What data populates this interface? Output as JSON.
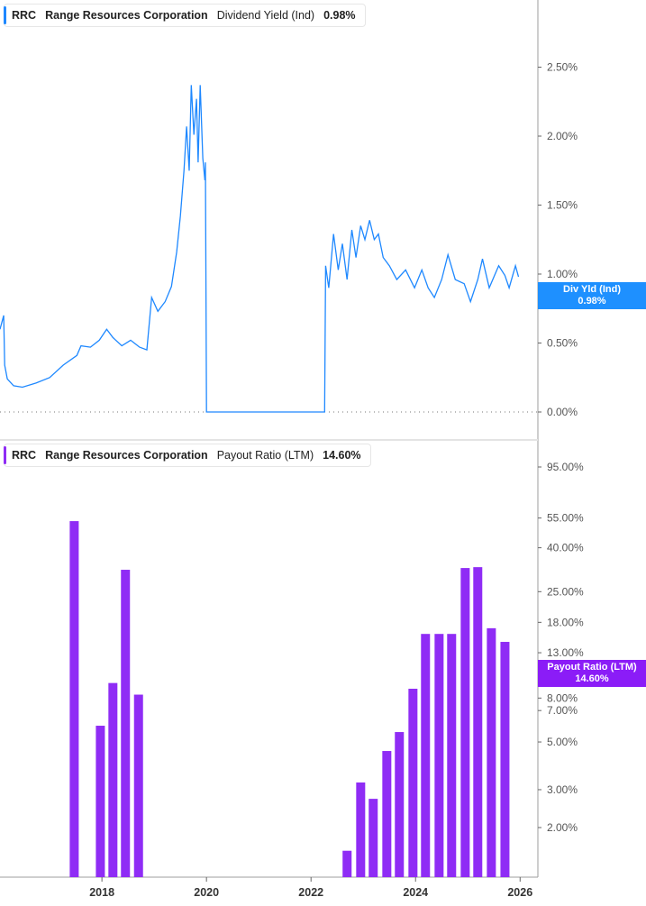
{
  "colors": {
    "dividend": "#1e88ff",
    "payout": "#8f2cf5",
    "axis": "#9e9e9e"
  },
  "top_legend": {
    "ticker": "RRC",
    "company": "Range Resources Corporation",
    "metric": "Dividend Yield (Ind)",
    "value": "0.98%"
  },
  "top_badge": {
    "label": "Div Yld (Ind)",
    "value": "0.98%"
  },
  "bottom_legend": {
    "ticker": "RRC",
    "company": "Range Resources Corporation",
    "metric": "Payout Ratio (LTM)",
    "value": "14.60%"
  },
  "bottom_badge": {
    "label": "Payout Ratio (LTM)",
    "value": "14.60%"
  },
  "chart_data": [
    {
      "type": "line",
      "series_label": "Dividend Yield (Ind)",
      "y_scale": "linear",
      "ylim": [
        0,
        2.8
      ],
      "y_ticks": [
        0,
        0.5,
        1.0,
        1.5,
        2.0,
        2.5
      ],
      "y_tick_labels": [
        "0.00%",
        "0.50%",
        "1.00%",
        "1.50%",
        "2.00%",
        "2.50%"
      ],
      "xlim": [
        2016.05,
        2026.34
      ],
      "x": [
        2016.05,
        2016.12,
        2016.14,
        2016.19,
        2016.31,
        2016.48,
        2016.74,
        2017.0,
        2017.26,
        2017.52,
        2017.6,
        2017.78,
        2017.95,
        2018.09,
        2018.21,
        2018.38,
        2018.55,
        2018.72,
        2018.86,
        2018.95,
        2019.07,
        2019.21,
        2019.33,
        2019.43,
        2019.5,
        2019.57,
        2019.62,
        2019.67,
        2019.71,
        2019.76,
        2019.81,
        2019.84,
        2019.88,
        2019.93,
        2019.97,
        2019.98,
        2020.0,
        2022.26,
        2022.28,
        2022.34,
        2022.43,
        2022.52,
        2022.6,
        2022.69,
        2022.78,
        2022.86,
        2022.95,
        2023.03,
        2023.12,
        2023.21,
        2023.29,
        2023.38,
        2023.5,
        2023.64,
        2023.81,
        2023.98,
        2024.12,
        2024.24,
        2024.36,
        2024.5,
        2024.62,
        2024.76,
        2024.93,
        2025.05,
        2025.19,
        2025.28,
        2025.41,
        2025.59,
        2025.71,
        2025.79,
        2025.91,
        2025.97
      ],
      "y": [
        0.6,
        0.7,
        0.34,
        0.24,
        0.19,
        0.18,
        0.21,
        0.25,
        0.34,
        0.41,
        0.48,
        0.47,
        0.52,
        0.6,
        0.54,
        0.48,
        0.52,
        0.47,
        0.45,
        0.83,
        0.73,
        0.8,
        0.91,
        1.16,
        1.42,
        1.75,
        2.07,
        1.75,
        2.37,
        2.01,
        2.27,
        1.81,
        2.37,
        1.84,
        1.68,
        1.81,
        0,
        0,
        1.06,
        0.9,
        1.29,
        1.03,
        1.22,
        0.96,
        1.32,
        1.12,
        1.35,
        1.25,
        1.39,
        1.25,
        1.29,
        1.12,
        1.06,
        0.96,
        1.03,
        0.9,
        1.03,
        0.9,
        0.83,
        0.96,
        1.14,
        0.96,
        0.93,
        0.8,
        0.96,
        1.11,
        0.9,
        1.06,
        0.99,
        0.9,
        1.06,
        0.98
      ],
      "grid": false
    },
    {
      "type": "bar",
      "series_label": "Payout Ratio (LTM)",
      "y_scale": "log",
      "ylim": [
        1.2,
        130
      ],
      "y_ticks": [
        2,
        3,
        5,
        7,
        8,
        13,
        18,
        25,
        40,
        55,
        95
      ],
      "y_tick_labels": [
        "2.00%",
        "3.00%",
        "5.00%",
        "7.00%",
        "8.00%",
        "13.00%",
        "18.00%",
        "25.00%",
        "40.00%",
        "55.00%",
        "95.00%"
      ],
      "x_ticks": [
        2018,
        2020,
        2022,
        2024,
        2026
      ],
      "x_tick_labels": [
        "2018",
        "2020",
        "2022",
        "2024",
        "2026"
      ],
      "xlim": [
        2016.05,
        2026.34
      ],
      "x": [
        2017.47,
        2017.97,
        2018.21,
        2018.45,
        2018.7,
        2022.69,
        2022.95,
        2023.19,
        2023.45,
        2023.69,
        2023.95,
        2024.19,
        2024.45,
        2024.69,
        2024.95,
        2025.19,
        2025.45,
        2025.71
      ],
      "values": [
        53.2,
        5.95,
        9.4,
        31.6,
        8.3,
        1.56,
        3.24,
        2.72,
        4.54,
        5.56,
        8.84,
        15.9,
        15.9,
        15.9,
        32.2,
        32.5,
        16.9,
        14.6
      ],
      "grid": false
    }
  ]
}
